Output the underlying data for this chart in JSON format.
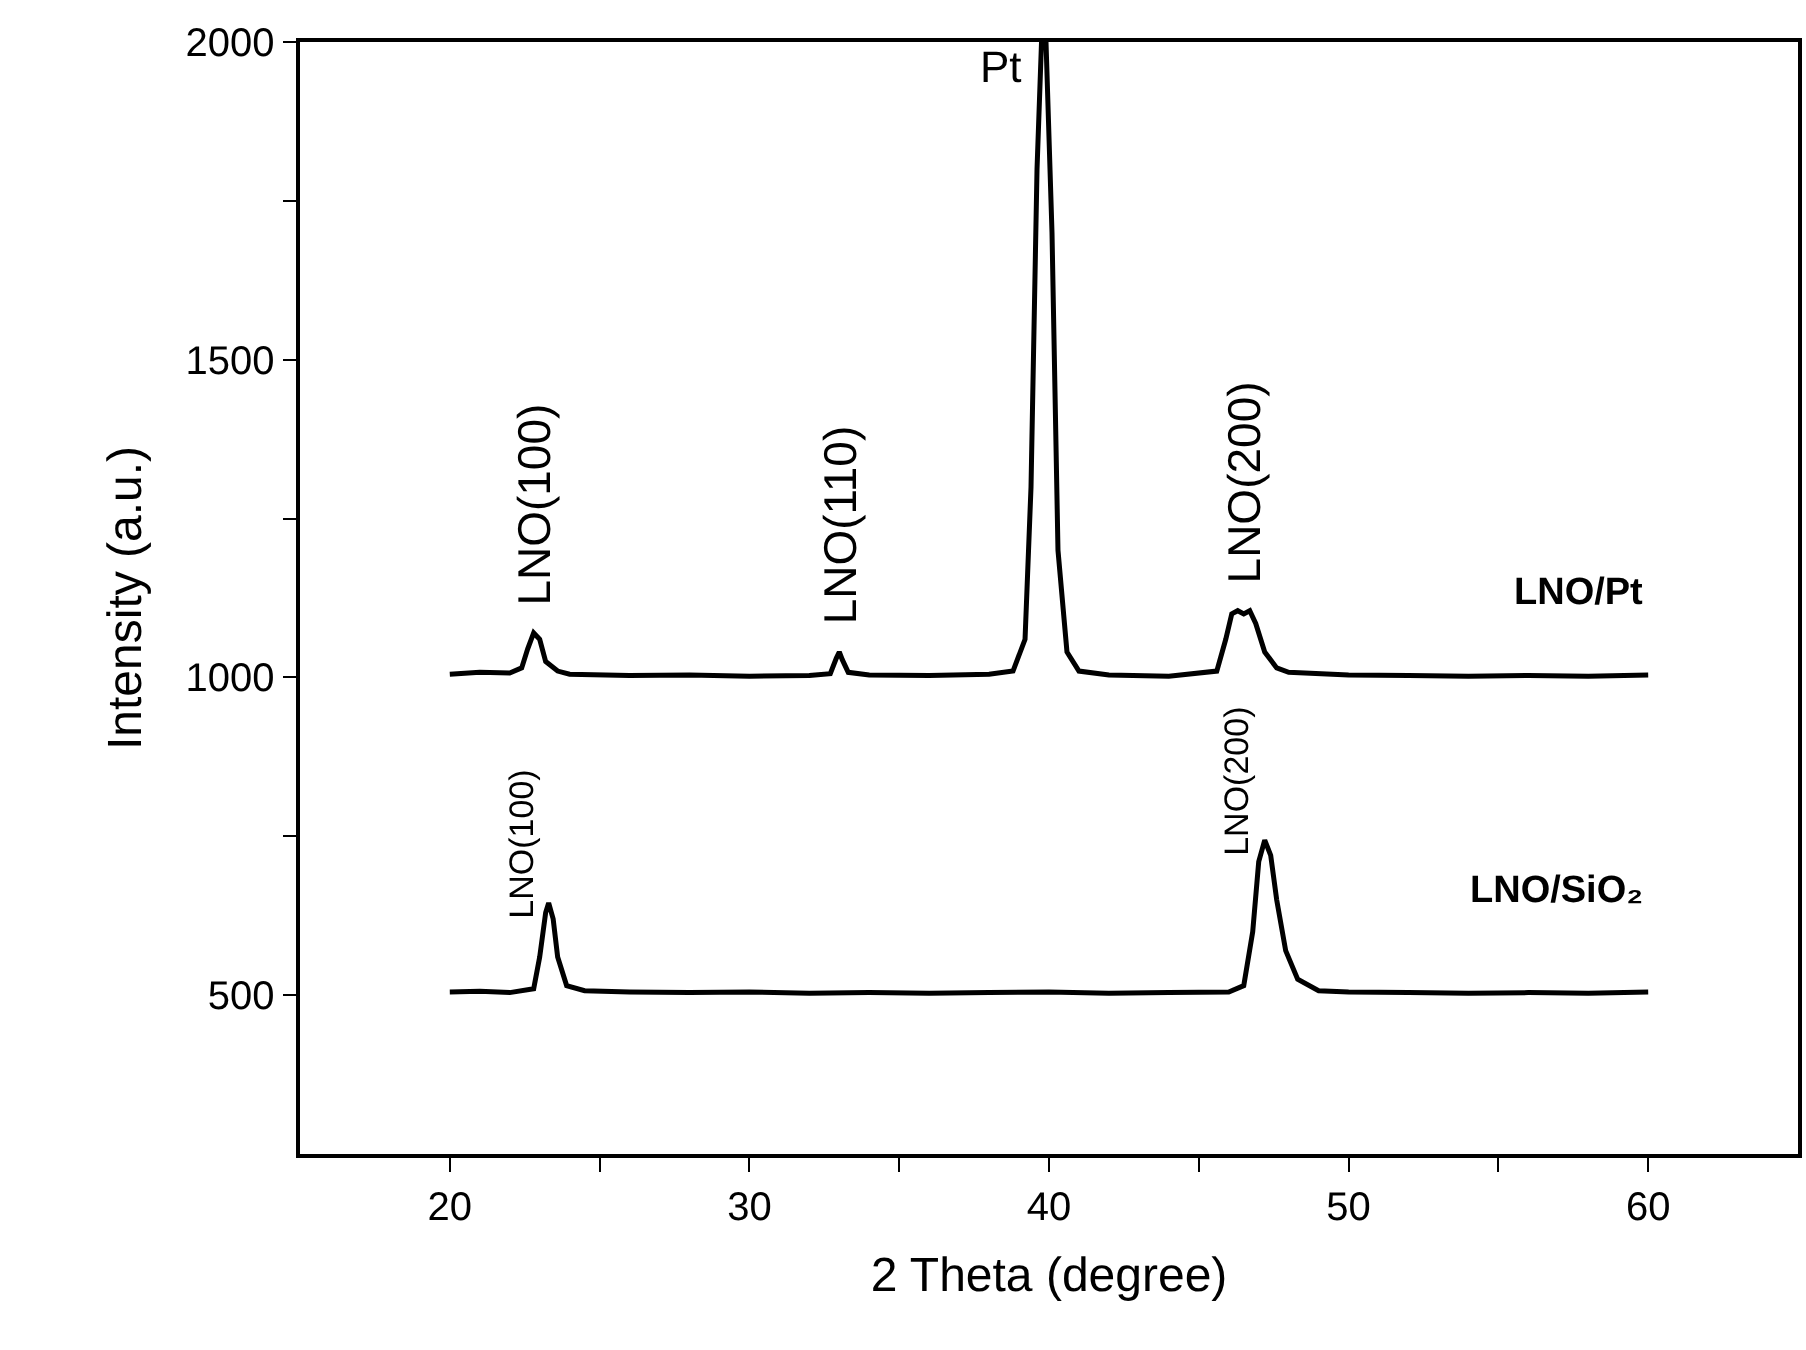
{
  "chart_data": {
    "type": "line",
    "xlabel": "2 Theta (degree)",
    "ylabel": "Intensity (a.u.)",
    "xlim": [
      15,
      65
    ],
    "ylim": [
      250,
      2000
    ],
    "xticks": [
      20,
      {
        "value": 25,
        "label": null
      },
      30,
      {
        "value": 35,
        "label": null
      },
      40,
      {
        "value": 45,
        "label": null
      },
      50,
      {
        "value": 55,
        "label": null
      },
      60
    ],
    "yticks": [
      500,
      {
        "value": 750,
        "label": null
      },
      1000,
      {
        "value": 1250,
        "label": null
      },
      1500,
      {
        "value": 1750,
        "label": null
      },
      2000
    ],
    "legend": false,
    "marker": "none",
    "line_style": "solid",
    "series": [
      {
        "name": "LNO/Pt",
        "color": "#000000",
        "x": [
          20,
          21,
          22,
          22.4,
          22.6,
          22.8,
          23.0,
          23.2,
          23.6,
          24,
          26,
          28,
          30,
          32,
          32.7,
          32.9,
          33.0,
          33.1,
          33.3,
          34,
          36,
          38,
          38.8,
          39.2,
          39.4,
          39.6,
          39.75,
          39.9,
          40.1,
          40.3,
          40.6,
          41,
          42,
          44,
          45.6,
          45.9,
          46.1,
          46.3,
          46.5,
          46.7,
          46.9,
          47.2,
          47.6,
          48,
          50,
          52,
          54,
          56,
          58,
          60
        ],
        "values": [
          1005,
          1008,
          1007,
          1015,
          1045,
          1070,
          1060,
          1025,
          1010,
          1005,
          1003,
          1004,
          1002,
          1003,
          1006,
          1030,
          1040,
          1028,
          1008,
          1004,
          1003,
          1005,
          1010,
          1060,
          1300,
          1800,
          2000,
          2000,
          1700,
          1200,
          1040,
          1010,
          1004,
          1002,
          1010,
          1060,
          1100,
          1105,
          1100,
          1105,
          1085,
          1040,
          1015,
          1008,
          1004,
          1003,
          1002,
          1003,
          1002,
          1004
        ]
      },
      {
        "name": "LNO/SiO₂",
        "color": "#000000",
        "x": [
          20,
          21,
          22,
          22.8,
          23.0,
          23.2,
          23.3,
          23.45,
          23.6,
          23.9,
          24.5,
          26,
          28,
          30,
          32,
          34,
          36,
          38,
          40,
          42,
          44,
          46,
          46.5,
          46.8,
          47.0,
          47.2,
          47.4,
          47.6,
          47.9,
          48.3,
          49,
          50,
          52,
          54,
          56,
          58,
          60
        ],
        "values": [
          505,
          506,
          504,
          510,
          560,
          630,
          645,
          620,
          560,
          515,
          507,
          505,
          504,
          505,
          503,
          504,
          503,
          504,
          505,
          503,
          504,
          505,
          515,
          600,
          710,
          744,
          720,
          650,
          570,
          525,
          507,
          505,
          504,
          503,
          504,
          503,
          505
        ]
      }
    ],
    "annotations": [
      {
        "text": "LNO(100)",
        "x": 22.8,
        "y": 1070
      },
      {
        "text": "LNO(110)",
        "x": 33.0,
        "y": 1040
      },
      {
        "text": "Pt",
        "x": 39.75,
        "y": 2000
      },
      {
        "text": "LNO(200)",
        "x": 46.5,
        "y": 1105
      },
      {
        "text": "LNO(100)",
        "x": 23.3,
        "y": 645
      },
      {
        "text": "LNO(200)",
        "x": 47.2,
        "y": 744
      }
    ]
  }
}
